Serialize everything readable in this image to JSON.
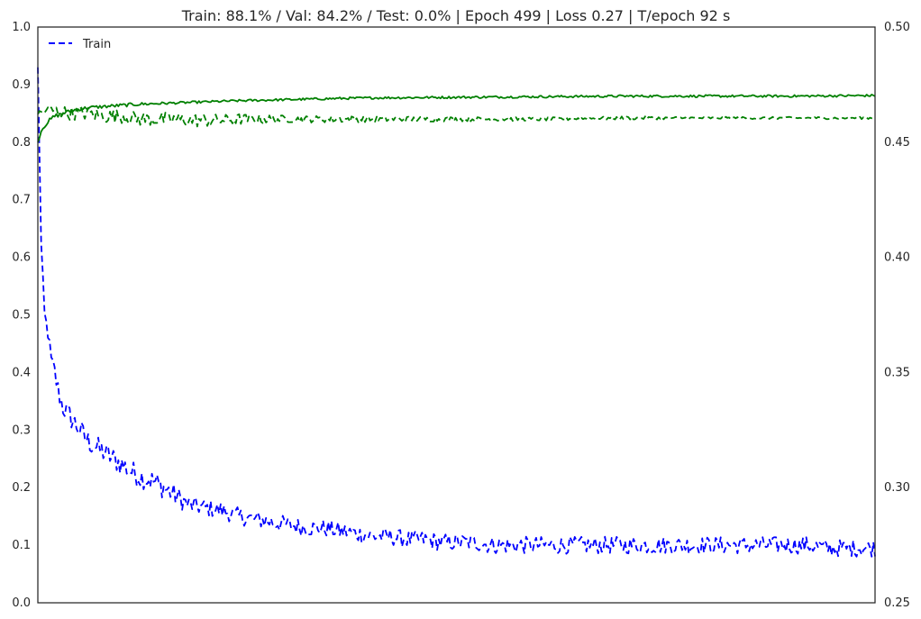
{
  "chart_data": {
    "type": "line",
    "title": "Train: 88.1% / Val: 84.2% / Test: 0.0% | Epoch 499 | Loss 0.27 | T/epoch 92 s",
    "xlim": [
      0,
      499
    ],
    "ylim_left": [
      0.0,
      1.0
    ],
    "ylim_right": [
      0.25,
      0.5
    ],
    "yticks_left": [
      "0.0",
      "0.1",
      "0.2",
      "0.3",
      "0.4",
      "0.5",
      "0.6",
      "0.7",
      "0.8",
      "0.9",
      "1.0"
    ],
    "yticks_right": [
      "0.25",
      "0.30",
      "0.35",
      "0.40",
      "0.45",
      "0.50"
    ],
    "grid": false,
    "legend": {
      "placement": "top-left",
      "entries": [
        {
          "label": "Train",
          "color": "#0000ff",
          "style": "dashed"
        }
      ]
    },
    "series": [
      {
        "name": "Train",
        "axis": "left",
        "style": "dashed",
        "color": "#0000ff",
        "x": [
          0,
          2,
          4,
          6,
          8,
          10,
          12,
          15,
          20,
          25,
          30,
          40,
          50,
          60,
          70,
          80,
          90,
          100,
          110,
          120,
          130,
          140,
          150,
          160,
          170,
          180,
          190,
          200,
          210,
          220,
          230,
          240,
          250,
          260,
          270,
          280,
          290,
          300,
          310,
          320,
          330,
          340,
          350,
          360,
          370,
          380,
          390,
          400,
          410,
          420,
          430,
          440,
          450,
          460,
          470,
          480,
          490,
          499
        ],
        "values": [
          0.93,
          0.62,
          0.5,
          0.47,
          0.42,
          0.4,
          0.37,
          0.34,
          0.32,
          0.3,
          0.28,
          0.26,
          0.24,
          0.22,
          0.21,
          0.19,
          0.17,
          0.165,
          0.16,
          0.15,
          0.145,
          0.14,
          0.135,
          0.13,
          0.13,
          0.125,
          0.12,
          0.115,
          0.115,
          0.11,
          0.11,
          0.105,
          0.105,
          0.105,
          0.1,
          0.1,
          0.1,
          0.1,
          0.1,
          0.1,
          0.1,
          0.1,
          0.1,
          0.1,
          0.1,
          0.1,
          0.1,
          0.1,
          0.1,
          0.1,
          0.1,
          0.1,
          0.1,
          0.1,
          0.095,
          0.095,
          0.095,
          0.095
        ],
        "noise": [
          0.0,
          0.01,
          0.01,
          0.015,
          0.015,
          0.02,
          0.02,
          0.02,
          0.02,
          0.02,
          0.02,
          0.02,
          0.02,
          0.02,
          0.02,
          0.02,
          0.015,
          0.015,
          0.015,
          0.015,
          0.015,
          0.015,
          0.015,
          0.015,
          0.015,
          0.015,
          0.015,
          0.015,
          0.015,
          0.015,
          0.015,
          0.015,
          0.015,
          0.015,
          0.015,
          0.015,
          0.015,
          0.015,
          0.015,
          0.015,
          0.015,
          0.015,
          0.015,
          0.015,
          0.015,
          0.015,
          0.015,
          0.015,
          0.015,
          0.015,
          0.015,
          0.015,
          0.015,
          0.015,
          0.015,
          0.015,
          0.015,
          0.015
        ]
      },
      {
        "axis": "left",
        "style": "solid",
        "color": "#008000",
        "x": [
          0,
          2,
          4,
          6,
          8,
          10,
          15,
          20,
          30,
          40,
          50,
          60,
          80,
          100,
          120,
          150,
          180,
          200,
          250,
          300,
          350,
          400,
          450,
          499
        ],
        "values": [
          0.8,
          0.82,
          0.83,
          0.835,
          0.84,
          0.845,
          0.85,
          0.855,
          0.86,
          0.862,
          0.864,
          0.866,
          0.868,
          0.87,
          0.872,
          0.874,
          0.876,
          0.877,
          0.878,
          0.879,
          0.88,
          0.88,
          0.88,
          0.881
        ],
        "noise": [
          0.0,
          0.005,
          0.005,
          0.004,
          0.004,
          0.004,
          0.003,
          0.003,
          0.003,
          0.003,
          0.003,
          0.003,
          0.002,
          0.002,
          0.002,
          0.002,
          0.002,
          0.002,
          0.002,
          0.002,
          0.002,
          0.002,
          0.002,
          0.002
        ]
      },
      {
        "axis": "left",
        "style": "dashed",
        "color": "#008000",
        "x": [
          0,
          5,
          10,
          20,
          30,
          40,
          50,
          60,
          70,
          80,
          90,
          100,
          110,
          120,
          130,
          140,
          150,
          160,
          170,
          180,
          200,
          220,
          250,
          300,
          350,
          400,
          450,
          499
        ],
        "values": [
          0.85,
          0.855,
          0.855,
          0.85,
          0.85,
          0.845,
          0.845,
          0.84,
          0.84,
          0.84,
          0.838,
          0.838,
          0.838,
          0.84,
          0.84,
          0.84,
          0.84,
          0.84,
          0.84,
          0.84,
          0.84,
          0.84,
          0.84,
          0.84,
          0.842,
          0.842,
          0.842,
          0.842
        ],
        "noise": [
          0.005,
          0.008,
          0.01,
          0.012,
          0.012,
          0.012,
          0.012,
          0.012,
          0.012,
          0.012,
          0.012,
          0.012,
          0.01,
          0.01,
          0.008,
          0.008,
          0.006,
          0.006,
          0.006,
          0.006,
          0.005,
          0.005,
          0.004,
          0.003,
          0.003,
          0.002,
          0.002,
          0.002
        ]
      },
      {
        "axis": "left",
        "style": "solid",
        "color": "#e41a1c",
        "x": [
          0,
          499
        ],
        "values": [
          0.0,
          0.0
        ],
        "noise": [
          0,
          0
        ]
      }
    ]
  }
}
